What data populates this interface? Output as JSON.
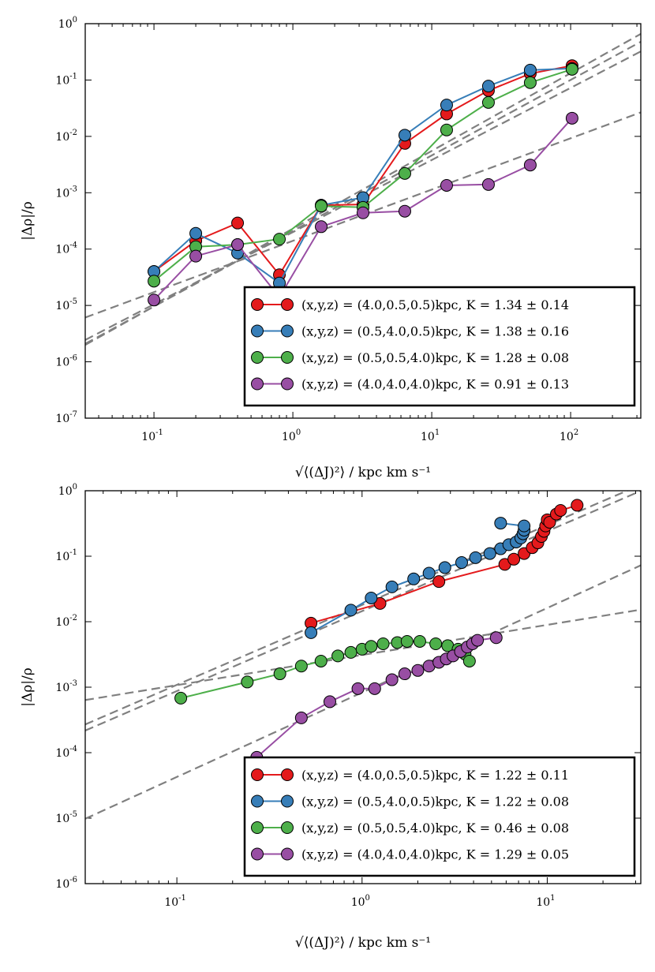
{
  "chart_data": [
    {
      "type": "line",
      "xscale": "log",
      "yscale": "log",
      "xlim": [
        0.032,
        320
      ],
      "ylim": [
        1e-07,
        1
      ],
      "xlabel": "√⟨(ΔJ)²⟩ / kpc km s⁻¹",
      "ylabel": "|Δρ|/ρ",
      "x_ticks": [
        {
          "value": 0.1,
          "base": "10",
          "exp": "-1"
        },
        {
          "value": 1,
          "base": "10",
          "exp": "0"
        },
        {
          "value": 10,
          "base": "10",
          "exp": "1"
        },
        {
          "value": 100,
          "base": "10",
          "exp": "2"
        }
      ],
      "y_ticks": [
        {
          "value": 1e-07,
          "base": "10",
          "exp": "-7"
        },
        {
          "value": 1e-06,
          "base": "10",
          "exp": "-6"
        },
        {
          "value": 1e-05,
          "base": "10",
          "exp": "-5"
        },
        {
          "value": 0.0001,
          "base": "10",
          "exp": "-4"
        },
        {
          "value": 0.001,
          "base": "10",
          "exp": "-3"
        },
        {
          "value": 0.01,
          "base": "10",
          "exp": "-2"
        },
        {
          "value": 0.1,
          "base": "10",
          "exp": "-1"
        },
        {
          "value": 1,
          "base": "10",
          "exp": "0"
        }
      ],
      "legend_position": "lower-right",
      "series": [
        {
          "name": "(x,y,z) = (4.0,0.5,0.5)kpc,  K = 1.34 ± 0.14",
          "color": "#e41a1c",
          "x": [
            0.1,
            0.2,
            0.4,
            0.8,
            1.6,
            3.2,
            6.4,
            12.8,
            25.6,
            51.2,
            102.4
          ],
          "y": [
            4e-05,
            0.00014,
            0.00029,
            3.5e-05,
            0.0006,
            0.00062,
            0.0075,
            0.025,
            0.065,
            0.13,
            0.18
          ]
        },
        {
          "name": "(x,y,z) = (0.5,4.0,0.5)kpc,  K = 1.38 ± 0.16",
          "color": "#377eb8",
          "x": [
            0.1,
            0.2,
            0.4,
            0.8,
            1.6,
            3.2,
            6.4,
            12.8,
            25.6,
            51.2,
            102.4
          ],
          "y": [
            4e-05,
            0.00019,
            8.5e-05,
            2.5e-05,
            0.0006,
            0.00082,
            0.0105,
            0.036,
            0.078,
            0.15,
            0.16
          ]
        },
        {
          "name": "(x,y,z) = (0.5,0.5,4.0)kpc,  K = 1.28 ± 0.08",
          "color": "#4daf4a",
          "x": [
            0.1,
            0.2,
            0.4,
            0.8,
            1.6,
            3.2,
            6.4,
            12.8,
            25.6,
            51.2,
            102.4
          ],
          "y": [
            2.7e-05,
            0.00011,
            0.00012,
            0.00015,
            0.00058,
            0.00055,
            0.0022,
            0.013,
            0.04,
            0.09,
            0.155
          ]
        },
        {
          "name": "(x,y,z) = (4.0,4.0,4.0)kpc,  K = 0.91 ± 0.13",
          "color": "#984ea3",
          "x": [
            0.1,
            0.2,
            0.4,
            0.8,
            1.6,
            3.2,
            6.4,
            12.8,
            25.6,
            51.2,
            102.4
          ],
          "y": [
            1.25e-05,
            7.5e-05,
            0.00012,
            1.4e-05,
            0.00025,
            0.00044,
            0.00047,
            0.00135,
            0.0014,
            0.0031,
            0.021
          ]
        }
      ],
      "fit_lines": [
        {
          "slope": 1.34,
          "intercept_at_x1": 0.00021,
          "color": "#808080"
        },
        {
          "slope": 1.38,
          "intercept_at_x1": 0.00023,
          "color": "#808080"
        },
        {
          "slope": 1.28,
          "intercept_at_x1": 0.0002,
          "color": "#808080"
        },
        {
          "slope": 0.91,
          "intercept_at_x1": 0.00014,
          "color": "#808080"
        }
      ]
    },
    {
      "type": "line",
      "xscale": "log",
      "yscale": "log",
      "xlim": [
        0.032,
        32
      ],
      "ylim": [
        1e-06,
        1
      ],
      "xlabel": "√⟨(ΔJ)²⟩ / kpc km s⁻¹",
      "ylabel": "|Δρ|/ρ",
      "x_ticks": [
        {
          "value": 0.1,
          "base": "10",
          "exp": "-1"
        },
        {
          "value": 1,
          "base": "10",
          "exp": "0"
        },
        {
          "value": 10,
          "base": "10",
          "exp": "1"
        }
      ],
      "y_ticks": [
        {
          "value": 1e-06,
          "base": "10",
          "exp": "-6"
        },
        {
          "value": 1e-05,
          "base": "10",
          "exp": "-5"
        },
        {
          "value": 0.0001,
          "base": "10",
          "exp": "-4"
        },
        {
          "value": 0.001,
          "base": "10",
          "exp": "-3"
        },
        {
          "value": 0.01,
          "base": "10",
          "exp": "-2"
        },
        {
          "value": 0.1,
          "base": "10",
          "exp": "-1"
        },
        {
          "value": 1,
          "base": "10",
          "exp": "0"
        }
      ],
      "legend_position": "lower-right",
      "series": [
        {
          "name": "(x,y,z) = (4.0,0.5,0.5)kpc,  K = 1.22 ± 0.11",
          "color": "#e41a1c",
          "x": [
            0.53,
            1.25,
            2.6,
            5.9,
            6.6,
            7.5,
            8.3,
            8.9,
            9.3,
            9.6,
            9.8,
            10.0,
            10.3,
            11.2,
            11.8,
            14.5
          ],
          "y": [
            0.0095,
            0.019,
            0.041,
            0.075,
            0.09,
            0.11,
            0.135,
            0.16,
            0.2,
            0.24,
            0.29,
            0.36,
            0.33,
            0.44,
            0.5,
            0.6
          ]
        },
        {
          "name": "(x,y,z) = (0.5,4.0,0.5)kpc,  K = 1.22 ± 0.08",
          "color": "#377eb8",
          "x": [
            0.53,
            0.87,
            1.12,
            1.45,
            1.9,
            2.3,
            2.8,
            3.45,
            4.1,
            4.9,
            5.6,
            6.2,
            6.8,
            7.2,
            7.4,
            7.5,
            7.5,
            5.6
          ],
          "y": [
            0.0068,
            0.015,
            0.023,
            0.034,
            0.045,
            0.055,
            0.067,
            0.08,
            0.095,
            0.11,
            0.13,
            0.15,
            0.165,
            0.19,
            0.22,
            0.25,
            0.29,
            0.32
          ]
        },
        {
          "name": "(x,y,z) = (0.5,0.5,4.0)kpc,  K = 0.46 ± 0.08",
          "color": "#4daf4a",
          "x": [
            0.105,
            0.24,
            0.36,
            0.47,
            0.6,
            0.74,
            0.87,
            1.0,
            1.12,
            1.3,
            1.55,
            1.75,
            2.05,
            2.5,
            2.9,
            3.3,
            3.6,
            3.8
          ],
          "y": [
            0.00068,
            0.0012,
            0.0016,
            0.0021,
            0.0025,
            0.003,
            0.0034,
            0.0038,
            0.0042,
            0.0046,
            0.0048,
            0.005,
            0.005,
            0.0046,
            0.0043,
            0.0038,
            0.0032,
            0.0025
          ]
        },
        {
          "name": "(x,y,z) = (4.0,4.0,4.0)kpc,  K = 1.29 ± 0.05",
          "color": "#984ea3",
          "x": [
            0.27,
            0.47,
            0.67,
            0.95,
            1.17,
            1.45,
            1.7,
            2.0,
            2.3,
            2.6,
            2.85,
            3.1,
            3.4,
            3.7,
            3.95,
            4.2,
            5.3
          ],
          "y": [
            8.5e-05,
            0.00034,
            0.0006,
            0.00095,
            0.00095,
            0.0013,
            0.0016,
            0.0018,
            0.0021,
            0.0024,
            0.0027,
            0.003,
            0.0035,
            0.0041,
            0.0046,
            0.0052,
            0.0057
          ]
        }
      ],
      "fit_lines": [
        {
          "slope": 1.22,
          "intercept_at_x1": 0.018,
          "color": "#808080"
        },
        {
          "slope": 1.22,
          "intercept_at_x1": 0.0145,
          "color": "#808080"
        },
        {
          "slope": 0.46,
          "intercept_at_x1": 0.0031,
          "color": "#808080"
        },
        {
          "slope": 1.29,
          "intercept_at_x1": 0.00083,
          "color": "#808080"
        }
      ]
    }
  ]
}
